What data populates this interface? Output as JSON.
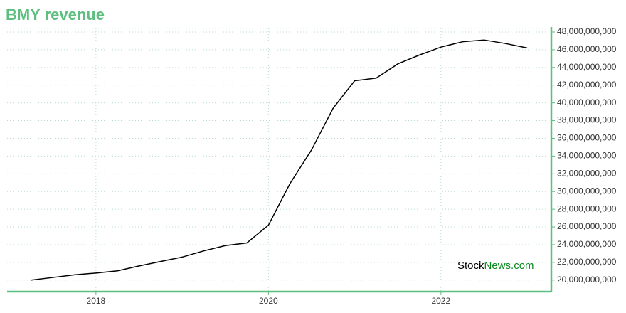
{
  "chart_data": {
    "type": "line",
    "title": "BMY revenue",
    "watermark": [
      "Stock",
      "News.com"
    ],
    "x": [
      2017.25,
      2017.5,
      2017.75,
      2018.0,
      2018.25,
      2018.5,
      2018.75,
      2019.0,
      2019.25,
      2019.5,
      2019.75,
      2020.0,
      2020.25,
      2020.5,
      2020.75,
      2021.0,
      2021.25,
      2021.5,
      2021.75,
      2022.0,
      2022.25,
      2022.5,
      2022.75,
      2023.0
    ],
    "series": [
      {
        "name": "BMY revenue",
        "color": "#000000",
        "values": [
          20000000000,
          20300000000,
          20600000000,
          20800000000,
          21050000000,
          21600000000,
          22100000000,
          22600000000,
          23300000000,
          23900000000,
          24200000000,
          26200000000,
          30900000000,
          34700000000,
          39400000000,
          42500000000,
          42800000000,
          44400000000,
          45400000000,
          46300000000,
          46900000000,
          47100000000,
          46700000000,
          46200000000
        ]
      }
    ],
    "xlim": [
      2016.97,
      2023.28
    ],
    "xticks": [
      2018,
      2020,
      2022
    ],
    "ylim": [
      18700000000,
      48400000000
    ],
    "yticks": [
      {
        "value": 20000000000,
        "label": "20,000,000,000"
      },
      {
        "value": 22000000000,
        "label": "22,000,000,000"
      },
      {
        "value": 24000000000,
        "label": "24,000,000,000"
      },
      {
        "value": 26000000000,
        "label": "26,000,000,000"
      },
      {
        "value": 28000000000,
        "label": "28,000,000,000"
      },
      {
        "value": 30000000000,
        "label": "30,000,000,000"
      },
      {
        "value": 32000000000,
        "label": "32,000,000,000"
      },
      {
        "value": 34000000000,
        "label": "34,000,000,000"
      },
      {
        "value": 36000000000,
        "label": "36,000,000,000"
      },
      {
        "value": 38000000000,
        "label": "38,000,000,000"
      },
      {
        "value": 40000000000,
        "label": "40,000,000,000"
      },
      {
        "value": 42000000000,
        "label": "42,000,000,000"
      },
      {
        "value": 44000000000,
        "label": "44,000,000,000"
      },
      {
        "value": 46000000000,
        "label": "46,000,000,000"
      },
      {
        "value": 48000000000,
        "label": "48,000,000,000"
      }
    ],
    "grid": true,
    "axis_color": "#5cbf7f",
    "watermark_color": "#0a8a1f"
  }
}
